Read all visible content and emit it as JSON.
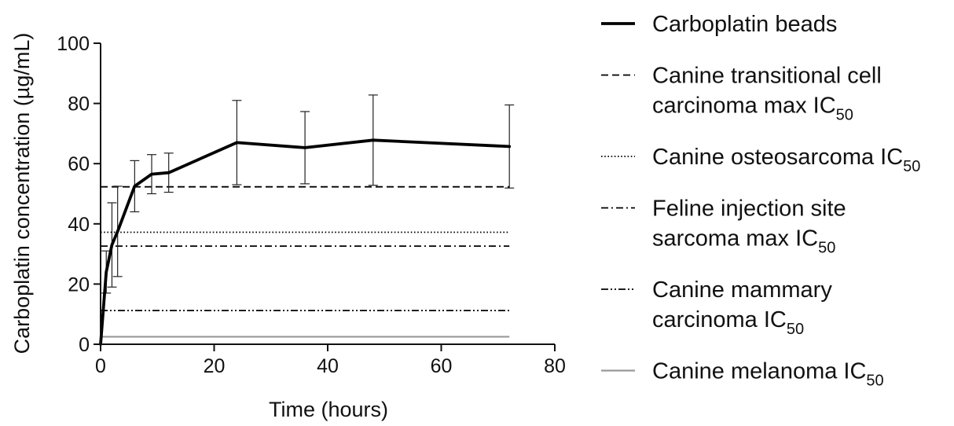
{
  "chart_data": {
    "type": "line",
    "xlabel": "Time (hours)",
    "ylabel": "Carboplatin concentration (µg/mL)",
    "xlim": [
      0,
      80
    ],
    "ylim": [
      0,
      100
    ],
    "x_ticks": [
      "0",
      "20",
      "40",
      "60",
      "80"
    ],
    "y_ticks": [
      "0",
      "20",
      "40",
      "60",
      "80",
      "100"
    ],
    "grid": false,
    "legend_position": "right",
    "series": [
      {
        "name": "Carboplatin beads",
        "style": "solid",
        "color": "#000000",
        "x": [
          0,
          1,
          2,
          3,
          6,
          9,
          12,
          24,
          36,
          48,
          72
        ],
        "y": [
          0,
          24,
          33,
          37.5,
          52.5,
          56.5,
          57,
          67,
          65.3,
          67.8,
          65.7
        ],
        "error": [
          0,
          7,
          14,
          15,
          8.5,
          6.5,
          6.5,
          14,
          12,
          15,
          13.8
        ]
      }
    ],
    "reference_lines": [
      {
        "name_lines": [
          "Canine transitional cell",
          "carcinoma max IC"
        ],
        "subscript": "50",
        "value": 52.3,
        "style": "dashed",
        "color": "#000000"
      },
      {
        "name_lines": [
          "Canine osteosarcoma IC"
        ],
        "subscript": "50",
        "value": 37.2,
        "style": "dotted",
        "color": "#000000"
      },
      {
        "name_lines": [
          "Feline injection site",
          "sarcoma max IC"
        ],
        "subscript": "50",
        "value": 32.6,
        "style": "dashdot",
        "color": "#000000"
      },
      {
        "name_lines": [
          "Canine mammary",
          "carcinoma IC"
        ],
        "subscript": "50",
        "value": 11.2,
        "style": "dashdotdot",
        "color": "#000000"
      },
      {
        "name_lines": [
          "Canine melanoma IC"
        ],
        "subscript": "50",
        "value": 2.5,
        "style": "solid-thin",
        "color": "#999999"
      }
    ],
    "reference_x_range": [
      0,
      72
    ]
  }
}
